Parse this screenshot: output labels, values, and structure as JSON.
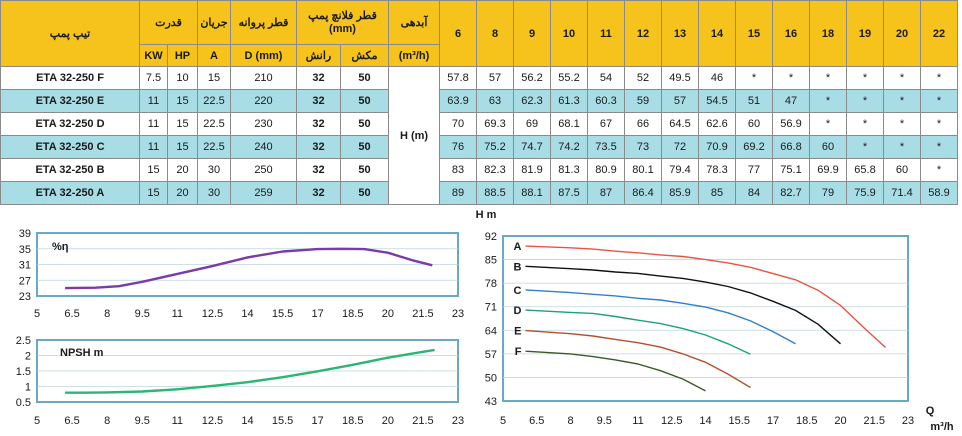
{
  "table": {
    "headers": {
      "model": "تیپ پمپ",
      "power": "قدرت",
      "current": "جریان",
      "impeller": "قطر پروانه",
      "flange": "قطر فلانچ پمپ (mm)",
      "flow": "آبدهی",
      "kw": "KW",
      "hp": "HP",
      "amp": "A",
      "d_mm": "D (mm)",
      "outlet": "رانش",
      "inlet": "مکش",
      "flow_unit": "(m³/h)",
      "head_label": "H (m)"
    },
    "flow_values": [
      "6",
      "8",
      "9",
      "10",
      "11",
      "12",
      "13",
      "14",
      "15",
      "16",
      "18",
      "19",
      "20",
      "22"
    ],
    "rows": [
      {
        "model": "ETA 32-250 F",
        "kw": "7.5",
        "hp": "10",
        "a": "15",
        "d": "210",
        "outlet": "32",
        "inlet": "50",
        "heads": [
          "57.8",
          "57",
          "56.2",
          "55.2",
          "54",
          "52",
          "49.5",
          "46",
          "*",
          "*",
          "*",
          "*",
          "*",
          "*"
        ]
      },
      {
        "model": "ETA 32-250 E",
        "kw": "11",
        "hp": "15",
        "a": "22.5",
        "d": "220",
        "outlet": "32",
        "inlet": "50",
        "heads": [
          "63.9",
          "63",
          "62.3",
          "61.3",
          "60.3",
          "59",
          "57",
          "54.5",
          "51",
          "47",
          "*",
          "*",
          "*",
          "*"
        ]
      },
      {
        "model": "ETA 32-250 D",
        "kw": "11",
        "hp": "15",
        "a": "22.5",
        "d": "230",
        "outlet": "32",
        "inlet": "50",
        "heads": [
          "70",
          "69.3",
          "69",
          "68.1",
          "67",
          "66",
          "64.5",
          "62.6",
          "60",
          "56.9",
          "*",
          "*",
          "*",
          "*"
        ]
      },
      {
        "model": "ETA 32-250 C",
        "kw": "11",
        "hp": "15",
        "a": "22.5",
        "d": "240",
        "outlet": "32",
        "inlet": "50",
        "heads": [
          "76",
          "75.2",
          "74.7",
          "74.2",
          "73.5",
          "73",
          "72",
          "70.9",
          "69.2",
          "66.8",
          "60",
          "*",
          "*",
          "*"
        ]
      },
      {
        "model": "ETA 32-250 B",
        "kw": "15",
        "hp": "20",
        "a": "30",
        "d": "250",
        "outlet": "32",
        "inlet": "50",
        "heads": [
          "83",
          "82.3",
          "81.9",
          "81.3",
          "80.9",
          "80.1",
          "79.4",
          "78.3",
          "77",
          "75.1",
          "69.9",
          "65.8",
          "60",
          "*"
        ]
      },
      {
        "model": "ETA 32-250 A",
        "kw": "15",
        "hp": "20",
        "a": "30",
        "d": "259",
        "outlet": "32",
        "inlet": "50",
        "heads": [
          "89",
          "88.5",
          "88.1",
          "87.5",
          "87",
          "86.4",
          "85.9",
          "85",
          "84",
          "82.7",
          "79",
          "75.9",
          "71.4",
          "58.9"
        ]
      }
    ]
  },
  "colors": {
    "header_bg": "#f6c21c",
    "row_alt_bg": "#a9dde6",
    "frame": "#6aa9c4",
    "grid": "#bcd6df",
    "efficiency_line": "#7a3aa8",
    "npsh_line": "#2bb673"
  },
  "chart_data": [
    {
      "type": "line",
      "label": "%η",
      "x_ticks": [
        "5",
        "6.5",
        "8",
        "9.5",
        "11",
        "12.5",
        "14",
        "15.5",
        "17",
        "18.5",
        "20",
        "21.5",
        "23"
      ],
      "y_ticks": [
        "23",
        "27",
        "31",
        "35",
        "39"
      ],
      "xlim": [
        5,
        23
      ],
      "ylim": [
        23,
        39
      ],
      "series": [
        {
          "x": [
            6.2,
            7.5,
            8.5,
            9.5,
            11,
            12.5,
            14,
            15.5,
            17,
            18,
            19,
            20,
            21.1,
            21.9
          ],
          "y": [
            25.0,
            25.1,
            25.5,
            26.6,
            28.6,
            30.6,
            32.8,
            34.3,
            34.9,
            35.0,
            34.9,
            34.0,
            32.0,
            30.8
          ]
        }
      ]
    },
    {
      "type": "line",
      "label": "NPSH m",
      "x_ticks": [
        "5",
        "6.5",
        "8",
        "9.5",
        "11",
        "12.5",
        "14",
        "15.5",
        "17",
        "18.5",
        "20",
        "21.5",
        "23"
      ],
      "y_ticks": [
        "0.5",
        "1",
        "1.5",
        "2",
        "2.5"
      ],
      "xlim": [
        5,
        23
      ],
      "ylim": [
        0.5,
        2.5
      ],
      "series": [
        {
          "x": [
            6.2,
            7,
            8,
            9.5,
            11,
            12.5,
            14,
            15.5,
            17,
            18.5,
            20,
            21.5,
            22
          ],
          "y": [
            0.8,
            0.8,
            0.81,
            0.84,
            0.91,
            1.02,
            1.14,
            1.3,
            1.49,
            1.7,
            1.93,
            2.12,
            2.18
          ]
        }
      ]
    },
    {
      "type": "line",
      "title": "H m",
      "xlabel": "Q",
      "xlabel_unit": "m³/h",
      "x_ticks": [
        "5",
        "6.5",
        "8",
        "9.5",
        "11",
        "12.5",
        "14",
        "15.5",
        "17",
        "18.5",
        "20",
        "21.5",
        "23"
      ],
      "y_ticks": [
        "43",
        "50",
        "57",
        "64",
        "71",
        "78",
        "85",
        "92"
      ],
      "xlim": [
        5,
        23
      ],
      "ylim": [
        43,
        92
      ],
      "series": [
        {
          "name": "A",
          "color": "#e8553f",
          "x": [
            6,
            8,
            9,
            10,
            11,
            12,
            13,
            14,
            15,
            16,
            18,
            19,
            20,
            21,
            22
          ],
          "y": [
            89,
            88.5,
            88.1,
            87.5,
            87,
            86.4,
            85.9,
            85,
            84,
            82.7,
            79,
            75.9,
            71.4,
            65,
            58.9
          ]
        },
        {
          "name": "B",
          "color": "#111111",
          "x": [
            6,
            8,
            9,
            10,
            11,
            12,
            13,
            14,
            15,
            16,
            17,
            18,
            19,
            20
          ],
          "y": [
            83,
            82.3,
            81.9,
            81.3,
            80.9,
            80.1,
            79.4,
            78.3,
            77,
            75.1,
            72.6,
            69.9,
            65.8,
            60
          ]
        },
        {
          "name": "C",
          "color": "#2f7fd0",
          "x": [
            6,
            8,
            9,
            10,
            11,
            12,
            13,
            14,
            15,
            16,
            17,
            18
          ],
          "y": [
            76,
            75.2,
            74.7,
            74.2,
            73.5,
            73,
            72,
            70.9,
            69.2,
            66.8,
            63.6,
            60
          ]
        },
        {
          "name": "D",
          "color": "#1aa37a",
          "x": [
            6,
            8,
            9,
            10,
            11,
            12,
            13,
            14,
            15,
            16
          ],
          "y": [
            70,
            69.3,
            69,
            68.1,
            67,
            66,
            64.5,
            62.6,
            60,
            56.9
          ]
        },
        {
          "name": "E",
          "color": "#b5502c",
          "x": [
            6,
            8,
            9,
            10,
            11,
            12,
            13,
            14,
            15,
            16
          ],
          "y": [
            63.9,
            63,
            62.3,
            61.3,
            60.3,
            59,
            57,
            54.5,
            51,
            47
          ]
        },
        {
          "name": "F",
          "color": "#3a5a2a",
          "x": [
            6,
            8,
            9,
            10,
            11,
            12,
            13,
            14
          ],
          "y": [
            57.8,
            57,
            56.2,
            55.2,
            54,
            52,
            49.5,
            46
          ]
        }
      ]
    }
  ]
}
